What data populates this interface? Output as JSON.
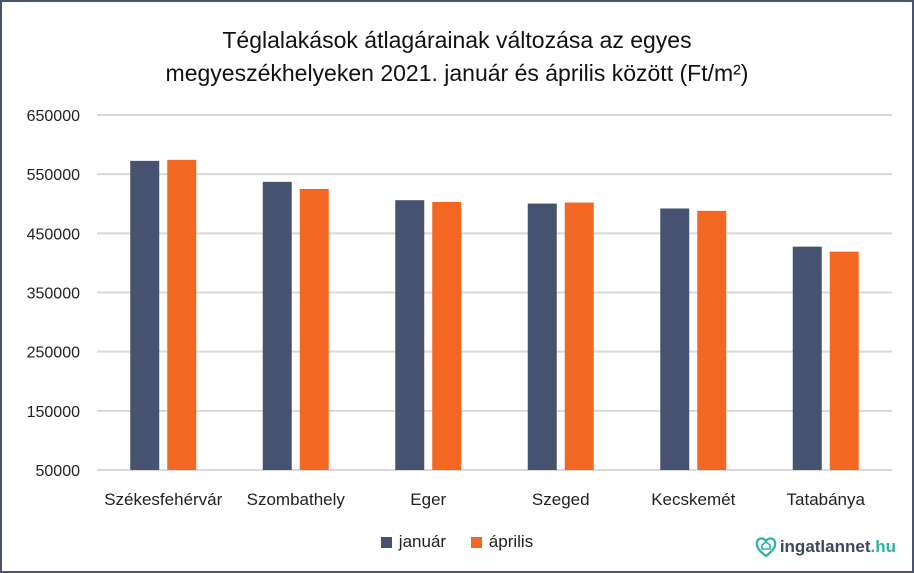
{
  "chart_data": {
    "type": "bar",
    "title_line1": "Téglalakások átlagárainak változása az egyes",
    "title_line2": "megyeszékhelyeken  2021. január és április között (Ft/m²)",
    "categories": [
      "Székesfehérvár",
      "Szombathely",
      "Eger",
      "Szeged",
      "Kecskemét",
      "Tatabánya"
    ],
    "series": [
      {
        "name": "január",
        "color": "#465270",
        "values": [
          572500,
          537000,
          506000,
          500300,
          492000,
          427500
        ]
      },
      {
        "name": "április",
        "color": "#f26722",
        "values": [
          574200,
          525000,
          503000,
          502000,
          488000,
          419000
        ]
      }
    ],
    "ylim": [
      50000,
      650000
    ],
    "yticks": [
      "50000",
      "150000",
      "250000",
      "350000",
      "450000",
      "550000",
      "650000"
    ],
    "grid": true,
    "legend": "bottom"
  },
  "logo": {
    "main": "ingatlannet",
    "suffix": ".hu"
  }
}
